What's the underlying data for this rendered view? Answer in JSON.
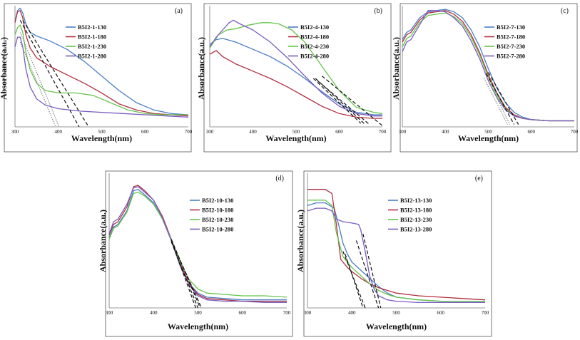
{
  "chart_data": [
    {
      "panel": "a",
      "type": "line",
      "panel_label": "(a)",
      "xlabel": "Wavelength(nm)",
      "ylabel": "Absorbance(a.u.)",
      "xlim": [
        300,
        700
      ],
      "ylim": [
        0,
        1
      ],
      "xticks": [
        300,
        400,
        500,
        600,
        700
      ],
      "series": [
        {
          "name": "B5I2-1-130",
          "color": "#4a7ec4",
          "x": [
            300,
            306,
            312,
            318,
            325,
            335,
            350,
            380,
            420,
            460,
            500,
            540,
            580,
            620,
            660,
            700
          ],
          "y": [
            0.87,
            0.96,
            0.98,
            0.94,
            0.85,
            0.78,
            0.75,
            0.71,
            0.64,
            0.54,
            0.42,
            0.3,
            0.2,
            0.14,
            0.11,
            0.1
          ]
        },
        {
          "name": "B5I2-1-180",
          "color": "#b03040",
          "x": [
            300,
            306,
            312,
            318,
            325,
            335,
            350,
            380,
            420,
            460,
            500,
            540,
            580,
            620,
            660,
            700
          ],
          "y": [
            0.86,
            0.95,
            0.96,
            0.9,
            0.76,
            0.65,
            0.57,
            0.5,
            0.43,
            0.36,
            0.28,
            0.19,
            0.14,
            0.11,
            0.1,
            0.09
          ]
        },
        {
          "name": "B5I2-1-230",
          "color": "#66c44c",
          "x": [
            300,
            306,
            312,
            318,
            325,
            335,
            350,
            370,
            400,
            440,
            480,
            520,
            560,
            600,
            640,
            700
          ],
          "y": [
            0.76,
            0.82,
            0.84,
            0.78,
            0.62,
            0.47,
            0.36,
            0.3,
            0.28,
            0.28,
            0.26,
            0.2,
            0.14,
            0.11,
            0.1,
            0.1
          ]
        },
        {
          "name": "B5I2-1-280",
          "color": "#7a5cc0",
          "x": [
            300,
            306,
            312,
            318,
            325,
            335,
            350,
            370,
            400,
            450,
            500,
            550,
            600,
            650,
            700
          ],
          "y": [
            0.66,
            0.74,
            0.74,
            0.66,
            0.48,
            0.33,
            0.23,
            0.18,
            0.15,
            0.13,
            0.12,
            0.11,
            0.1,
            0.09,
            0.08
          ]
        }
      ],
      "tangents": [
        {
          "style": "dashed",
          "x": [
            318,
            470
          ],
          "y": [
            0.88,
            0.0
          ]
        },
        {
          "style": "dashed",
          "x": [
            312,
            448
          ],
          "y": [
            0.88,
            0.0
          ]
        },
        {
          "style": "dotted",
          "x": [
            312,
            402
          ],
          "y": [
            0.78,
            0.0
          ]
        },
        {
          "style": "dotted",
          "x": [
            312,
            394
          ],
          "y": [
            0.7,
            0.0
          ]
        }
      ]
    },
    {
      "panel": "b",
      "type": "line",
      "panel_label": "(b)",
      "xlabel": "Wavelength(nm)",
      "ylabel": "Absorbance(a.u.)",
      "xlim": [
        300,
        700
      ],
      "ylim": [
        0,
        1
      ],
      "xticks": [
        300,
        400,
        500,
        600,
        700
      ],
      "series": [
        {
          "name": "B5I2-4-130",
          "color": "#4a7ec4",
          "x": [
            300,
            315,
            330,
            360,
            400,
            440,
            480,
            520,
            560,
            600,
            640,
            680,
            700
          ],
          "y": [
            0.68,
            0.72,
            0.73,
            0.7,
            0.64,
            0.58,
            0.5,
            0.4,
            0.29,
            0.19,
            0.12,
            0.1,
            0.1
          ]
        },
        {
          "name": "B5I2-4-180",
          "color": "#b03040",
          "x": [
            300,
            315,
            330,
            360,
            400,
            440,
            480,
            520,
            560,
            600,
            640,
            680,
            700
          ],
          "y": [
            0.6,
            0.63,
            0.58,
            0.52,
            0.46,
            0.4,
            0.33,
            0.25,
            0.17,
            0.11,
            0.08,
            0.07,
            0.07
          ]
        },
        {
          "name": "B5I2-4-230",
          "color": "#66c44c",
          "x": [
            300,
            320,
            340,
            360,
            390,
            420,
            440,
            460,
            490,
            520,
            560,
            600,
            640,
            680,
            700
          ],
          "y": [
            0.65,
            0.76,
            0.8,
            0.81,
            0.84,
            0.86,
            0.86,
            0.85,
            0.8,
            0.7,
            0.5,
            0.3,
            0.16,
            0.12,
            0.11
          ]
        },
        {
          "name": "B5I2-4-280",
          "color": "#7a5cc0",
          "x": [
            300,
            315,
            330,
            345,
            355,
            370,
            400,
            440,
            480,
            520,
            560,
            600,
            640,
            680,
            700
          ],
          "y": [
            0.66,
            0.74,
            0.8,
            0.86,
            0.88,
            0.85,
            0.8,
            0.7,
            0.57,
            0.42,
            0.28,
            0.17,
            0.11,
            0.09,
            0.09
          ]
        }
      ],
      "tangents": [
        {
          "style": "dashed",
          "x": [
            545,
            660
          ],
          "y": [
            0.4,
            0.02
          ]
        },
        {
          "style": "dashed",
          "x": [
            540,
            650
          ],
          "y": [
            0.4,
            0.03
          ]
        },
        {
          "style": "dashed",
          "x": [
            550,
            670
          ],
          "y": [
            0.38,
            0.02
          ]
        },
        {
          "style": "dashed",
          "x": [
            560,
            700
          ],
          "y": [
            0.42,
            0.01
          ]
        }
      ]
    },
    {
      "panel": "c",
      "type": "line",
      "panel_label": "(c)",
      "xlabel": "Wavelength(nm)",
      "ylabel": "Absorbance(a.u.)",
      "xlim": [
        300,
        700
      ],
      "ylim": [
        0,
        1
      ],
      "xticks": [
        300,
        400,
        500,
        600,
        700
      ],
      "series": [
        {
          "name": "B5I2-7-130",
          "color": "#4a7ec4",
          "x": [
            300,
            310,
            320,
            340,
            360,
            380,
            400,
            420,
            440,
            460,
            480,
            500,
            520,
            540,
            560,
            580,
            600,
            640,
            700
          ],
          "y": [
            0.72,
            0.78,
            0.8,
            0.9,
            0.95,
            0.96,
            0.97,
            0.95,
            0.9,
            0.8,
            0.66,
            0.48,
            0.32,
            0.2,
            0.12,
            0.08,
            0.06,
            0.05,
            0.05
          ]
        },
        {
          "name": "B5I2-7-180",
          "color": "#b03040",
          "x": [
            300,
            310,
            320,
            340,
            360,
            380,
            400,
            420,
            440,
            460,
            480,
            500,
            520,
            540,
            560,
            580,
            600,
            640,
            700
          ],
          "y": [
            0.7,
            0.76,
            0.78,
            0.88,
            0.94,
            0.95,
            0.96,
            0.93,
            0.87,
            0.76,
            0.61,
            0.43,
            0.28,
            0.16,
            0.1,
            0.07,
            0.06,
            0.05,
            0.05
          ]
        },
        {
          "name": "B5I2-7-230",
          "color": "#66c44c",
          "x": [
            300,
            310,
            320,
            340,
            360,
            380,
            400,
            420,
            440,
            460,
            480,
            500,
            520,
            540,
            560,
            580,
            600,
            640,
            700
          ],
          "y": [
            0.66,
            0.73,
            0.75,
            0.86,
            0.92,
            0.93,
            0.94,
            0.91,
            0.85,
            0.74,
            0.59,
            0.41,
            0.26,
            0.15,
            0.09,
            0.07,
            0.06,
            0.05,
            0.05
          ]
        },
        {
          "name": "B5I2-7-280",
          "color": "#7a5cc0",
          "x": [
            300,
            310,
            320,
            340,
            360,
            380,
            400,
            420,
            440,
            460,
            480,
            500,
            520,
            540,
            560,
            580,
            600,
            640,
            700
          ],
          "y": [
            0.62,
            0.7,
            0.72,
            0.84,
            0.96,
            0.96,
            0.95,
            0.9,
            0.83,
            0.71,
            0.56,
            0.38,
            0.24,
            0.14,
            0.09,
            0.07,
            0.06,
            0.05,
            0.05
          ]
        }
      ],
      "tangents": [
        {
          "style": "dashed",
          "x": [
            500,
            570
          ],
          "y": [
            0.45,
            0.02
          ]
        },
        {
          "style": "dashed",
          "x": [
            495,
            560
          ],
          "y": [
            0.44,
            0.02
          ]
        },
        {
          "style": "dotted",
          "x": [
            495,
            550
          ],
          "y": [
            0.42,
            0.02
          ]
        },
        {
          "style": "dotted",
          "x": [
            490,
            545
          ],
          "y": [
            0.4,
            0.02
          ]
        }
      ]
    },
    {
      "panel": "d",
      "type": "line",
      "panel_label": "(d)",
      "xlabel": "Wavelength(nm)",
      "ylabel": "Absorbance(a.u.)",
      "xlim": [
        300,
        700
      ],
      "ylim": [
        0,
        1
      ],
      "xticks": [
        300,
        400,
        500,
        600,
        700
      ],
      "series": [
        {
          "name": "B5I2-10-130",
          "color": "#4a7ec4",
          "x": [
            300,
            310,
            320,
            340,
            355,
            365,
            380,
            400,
            420,
            440,
            460,
            480,
            500,
            520,
            560,
            600,
            650,
            700
          ],
          "y": [
            0.52,
            0.6,
            0.62,
            0.72,
            0.87,
            0.88,
            0.84,
            0.78,
            0.66,
            0.5,
            0.32,
            0.18,
            0.11,
            0.08,
            0.07,
            0.06,
            0.06,
            0.06
          ]
        },
        {
          "name": "B5I2-10-180",
          "color": "#b03040",
          "x": [
            300,
            310,
            320,
            340,
            355,
            365,
            380,
            400,
            420,
            440,
            460,
            480,
            500,
            520,
            560,
            600,
            650,
            700
          ],
          "y": [
            0.54,
            0.62,
            0.64,
            0.75,
            0.9,
            0.91,
            0.87,
            0.8,
            0.68,
            0.51,
            0.33,
            0.18,
            0.1,
            0.07,
            0.06,
            0.05,
            0.05,
            0.05
          ]
        },
        {
          "name": "B5I2-10-230",
          "color": "#66c44c",
          "x": [
            300,
            310,
            320,
            340,
            355,
            365,
            380,
            400,
            420,
            440,
            460,
            480,
            500,
            520,
            560,
            600,
            650,
            700
          ],
          "y": [
            0.51,
            0.59,
            0.61,
            0.71,
            0.85,
            0.86,
            0.83,
            0.77,
            0.66,
            0.51,
            0.34,
            0.21,
            0.14,
            0.11,
            0.1,
            0.09,
            0.09,
            0.08
          ]
        },
        {
          "name": "B5I2-10-280",
          "color": "#7a5cc0",
          "x": [
            300,
            310,
            320,
            340,
            355,
            365,
            380,
            400,
            420,
            440,
            460,
            480,
            500,
            520,
            560,
            600,
            650,
            700
          ],
          "y": [
            0.55,
            0.64,
            0.66,
            0.77,
            0.89,
            0.9,
            0.86,
            0.8,
            0.67,
            0.5,
            0.31,
            0.17,
            0.09,
            0.06,
            0.05,
            0.05,
            0.04,
            0.04
          ]
        }
      ],
      "tangents": [
        {
          "style": "dashed",
          "x": [
            440,
            508
          ],
          "y": [
            0.5,
            0.0
          ]
        },
        {
          "style": "dashed",
          "x": [
            440,
            505
          ],
          "y": [
            0.51,
            0.0
          ]
        },
        {
          "style": "dashed",
          "x": [
            440,
            500
          ],
          "y": [
            0.49,
            0.0
          ]
        },
        {
          "style": "dashed",
          "x": [
            440,
            495
          ],
          "y": [
            0.5,
            0.0
          ]
        }
      ]
    },
    {
      "panel": "e",
      "type": "line",
      "panel_label": "(e)",
      "xlabel": "Wavelength(nm)",
      "ylabel": "Absorbance(a.u.)",
      "xlim": [
        300,
        700
      ],
      "ylim": [
        0,
        1
      ],
      "xticks": [
        300,
        400,
        500,
        600,
        700
      ],
      "series": [
        {
          "name": "B5I2-13-130",
          "color": "#4a7ec4",
          "x": [
            300,
            320,
            340,
            360,
            370,
            380,
            390,
            400,
            420,
            440,
            460,
            480,
            500,
            550,
            600,
            650,
            700
          ],
          "y": [
            0.76,
            0.78,
            0.78,
            0.74,
            0.62,
            0.48,
            0.4,
            0.34,
            0.28,
            0.22,
            0.16,
            0.11,
            0.08,
            0.06,
            0.05,
            0.05,
            0.05
          ]
        },
        {
          "name": "B5I2-13-180",
          "color": "#b03040",
          "x": [
            300,
            320,
            340,
            355,
            365,
            375,
            390,
            400,
            420,
            440,
            460,
            500,
            550,
            600,
            650,
            700
          ],
          "y": [
            0.88,
            0.88,
            0.88,
            0.85,
            0.62,
            0.36,
            0.3,
            0.27,
            0.22,
            0.18,
            0.15,
            0.11,
            0.09,
            0.08,
            0.07,
            0.06
          ]
        },
        {
          "name": "B5I2-13-230",
          "color": "#66c44c",
          "x": [
            300,
            320,
            340,
            355,
            365,
            380,
            400,
            420,
            440,
            460,
            480,
            500,
            550,
            600,
            650,
            700
          ],
          "y": [
            0.8,
            0.8,
            0.8,
            0.76,
            0.56,
            0.38,
            0.3,
            0.24,
            0.18,
            0.13,
            0.1,
            0.08,
            0.06,
            0.05,
            0.05,
            0.05
          ]
        },
        {
          "name": "B5I2-13-280",
          "color": "#7a5cc0",
          "x": [
            300,
            320,
            340,
            355,
            365,
            380,
            400,
            415,
            420,
            430,
            440,
            450,
            460,
            480,
            500,
            550,
            600,
            650,
            700
          ],
          "y": [
            0.72,
            0.74,
            0.74,
            0.72,
            0.66,
            0.64,
            0.63,
            0.62,
            0.58,
            0.42,
            0.24,
            0.14,
            0.09,
            0.06,
            0.05,
            0.04,
            0.04,
            0.04,
            0.04
          ]
        }
      ],
      "tangents": [
        {
          "style": "dashed",
          "x": [
            380,
            430
          ],
          "y": [
            0.42,
            0.0
          ]
        },
        {
          "style": "dashed",
          "x": [
            385,
            425
          ],
          "y": [
            0.4,
            0.0
          ]
        },
        {
          "style": "dashed",
          "x": [
            410,
            460
          ],
          "y": [
            0.5,
            0.0
          ]
        },
        {
          "style": "dashed",
          "x": [
            425,
            465
          ],
          "y": [
            0.55,
            0.0
          ]
        }
      ]
    }
  ]
}
